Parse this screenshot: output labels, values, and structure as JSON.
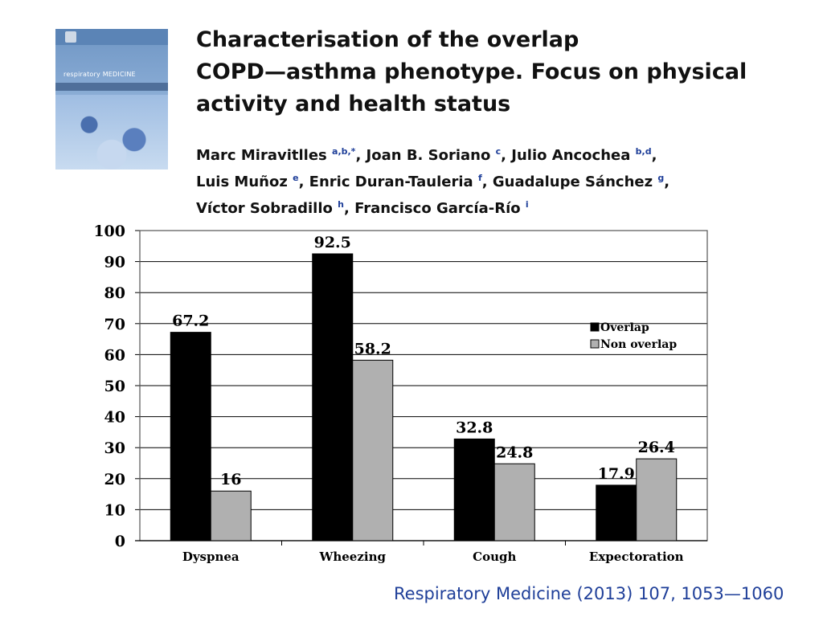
{
  "cover": {
    "title": "respiratory MEDICINE"
  },
  "paper": {
    "title_lines": [
      "Characterisation of the overlap",
      "COPD—asthma phenotype. Focus on physical",
      "activity and health status"
    ],
    "author_lines": [
      [
        {
          "name": "Marc Miravitlles",
          "aff": "a,b,*",
          "sep": ", "
        },
        {
          "name": "Joan B. Soriano",
          "aff": "c",
          "sep": ", "
        },
        {
          "name": "Julio Ancochea",
          "aff": "b,d",
          "sep": ","
        }
      ],
      [
        {
          "name": "Luis Muñoz",
          "aff": "e",
          "sep": ", "
        },
        {
          "name": "Enric Duran-Tauleria",
          "aff": "f",
          "sep": ", "
        },
        {
          "name": "Guadalupe Sánchez",
          "aff": "g",
          "sep": ","
        }
      ],
      [
        {
          "name": "Víctor Sobradillo",
          "aff": "h",
          "sep": ", "
        },
        {
          "name": "Francisco García-Río",
          "aff": "i",
          "sep": ""
        }
      ]
    ],
    "citation": "Respiratory Medicine (2013) 107, 1053—1060"
  },
  "chart_data": {
    "type": "bar",
    "categories": [
      "Dyspnea",
      "Wheezing",
      "Cough",
      "Expectoration"
    ],
    "series": [
      {
        "name": "Overlap",
        "values": [
          67.2,
          92.5,
          32.8,
          17.9
        ],
        "color": "#000000",
        "labels": [
          "67.2",
          "92.5",
          "32.8",
          "17.9"
        ]
      },
      {
        "name": "Non overlap",
        "values": [
          16,
          58.2,
          24.8,
          26.4
        ],
        "color": "#b0b0b0",
        "labels": [
          "16",
          "58.2",
          "24.8",
          "26.4"
        ]
      }
    ],
    "ylim": [
      0,
      100
    ],
    "yticks": [
      0,
      10,
      20,
      30,
      40,
      50,
      60,
      70,
      80,
      90,
      100
    ],
    "grid": true,
    "legend": "right"
  },
  "colors": {
    "citation": "#1f3f99",
    "affiliation": "#1f3f99"
  }
}
